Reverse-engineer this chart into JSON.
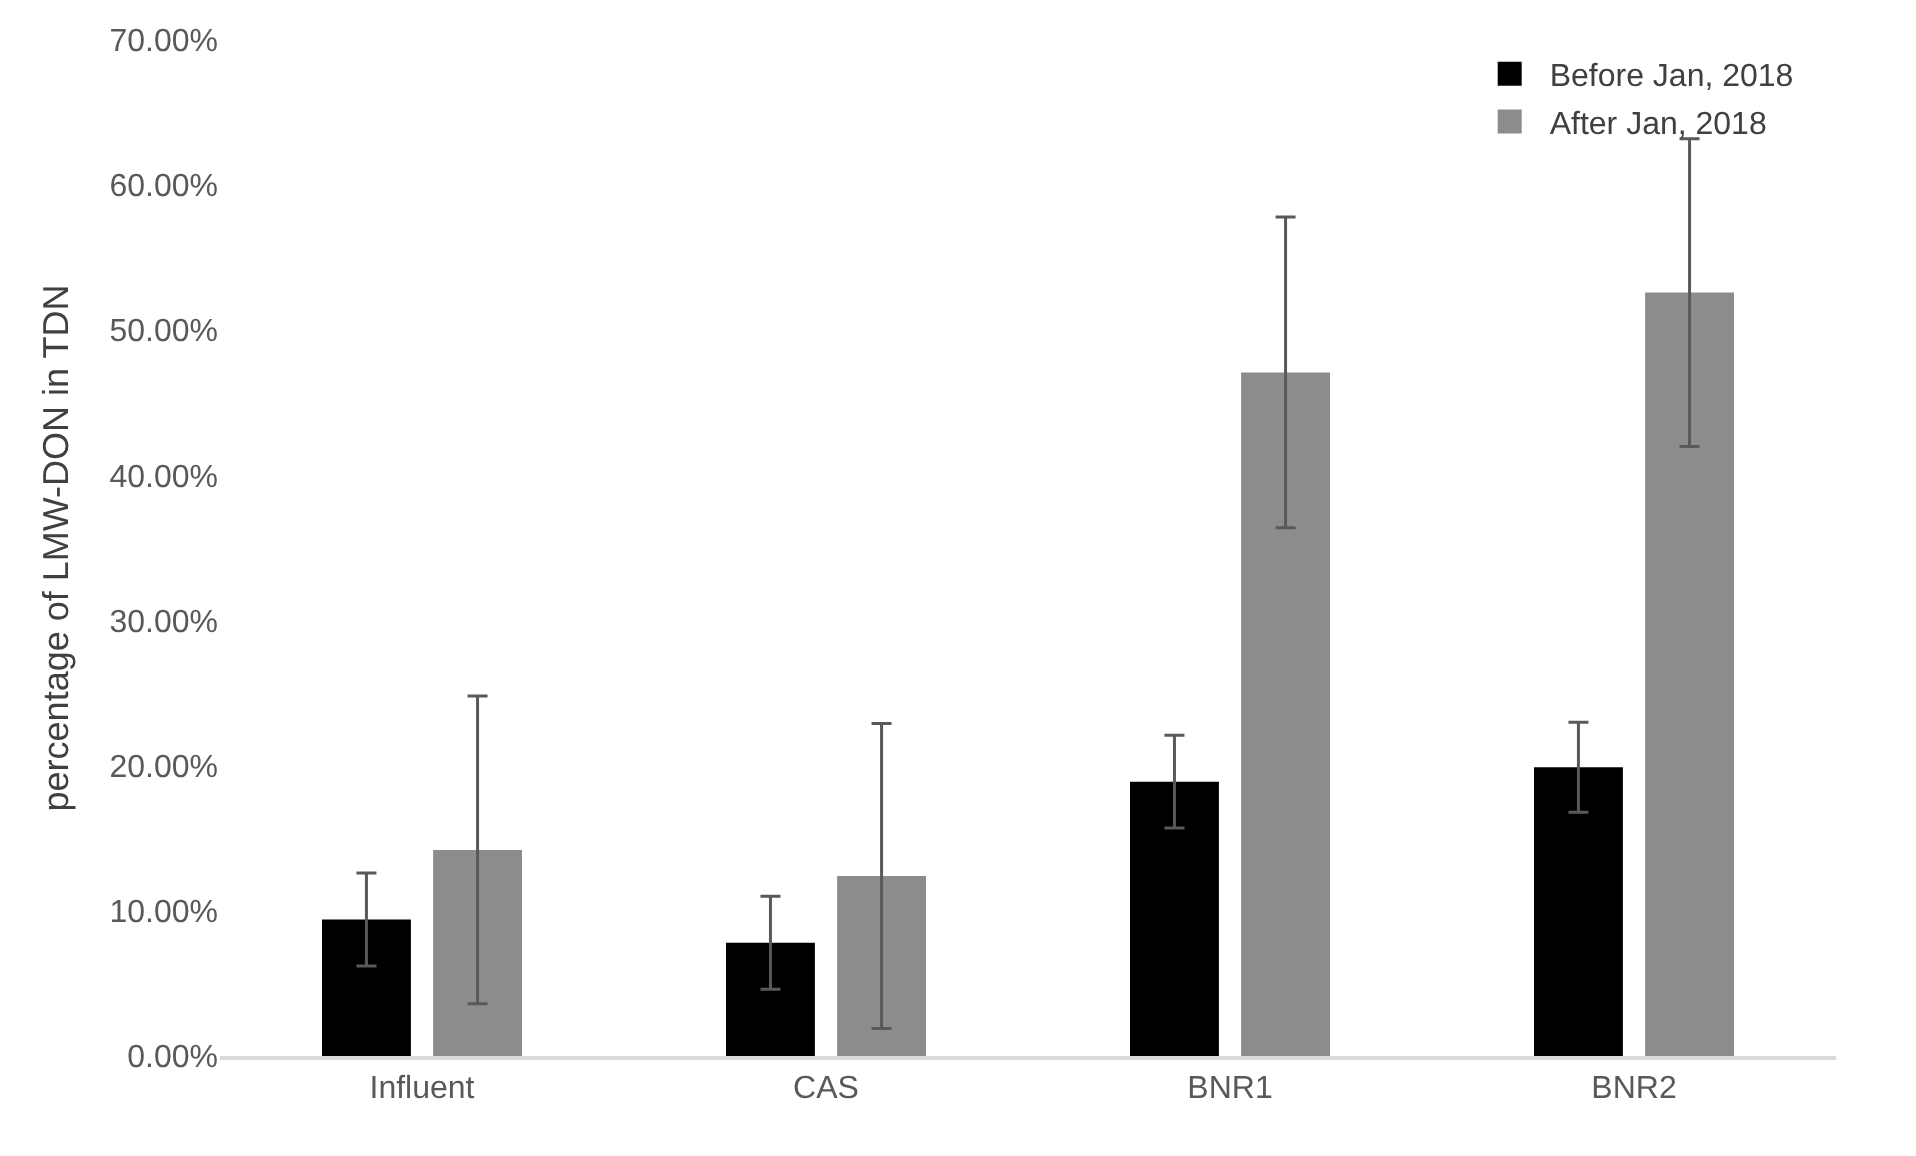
{
  "chart_data": {
    "type": "bar",
    "ylabel": "percentage of LMW-DON in TDN",
    "categories": [
      "Influent",
      "CAS",
      "BNR1",
      "BNR2"
    ],
    "series": [
      {
        "name": "Before Jan, 2018",
        "color": "#000000",
        "values": [
          9.4,
          7.8,
          18.9,
          19.9
        ],
        "errors": [
          3.2,
          3.2,
          3.2,
          3.1
        ]
      },
      {
        "name": "After Jan, 2018",
        "color": "#8c8c8c",
        "values": [
          14.2,
          12.4,
          47.1,
          52.6
        ],
        "errors": [
          10.6,
          10.5,
          10.7,
          10.6
        ]
      }
    ],
    "ylim": [
      0,
      70
    ],
    "yticks": [
      {
        "value": 0,
        "label": "0.00%"
      },
      {
        "value": 10,
        "label": "10.00%"
      },
      {
        "value": 20,
        "label": "20.00%"
      },
      {
        "value": 30,
        "label": "30.00%"
      },
      {
        "value": 40,
        "label": "40.00%"
      },
      {
        "value": 50,
        "label": "50.00%"
      },
      {
        "value": 60,
        "label": "60.00%"
      },
      {
        "value": 70,
        "label": "70.00%"
      }
    ],
    "grid": false,
    "legend": "top right"
  }
}
